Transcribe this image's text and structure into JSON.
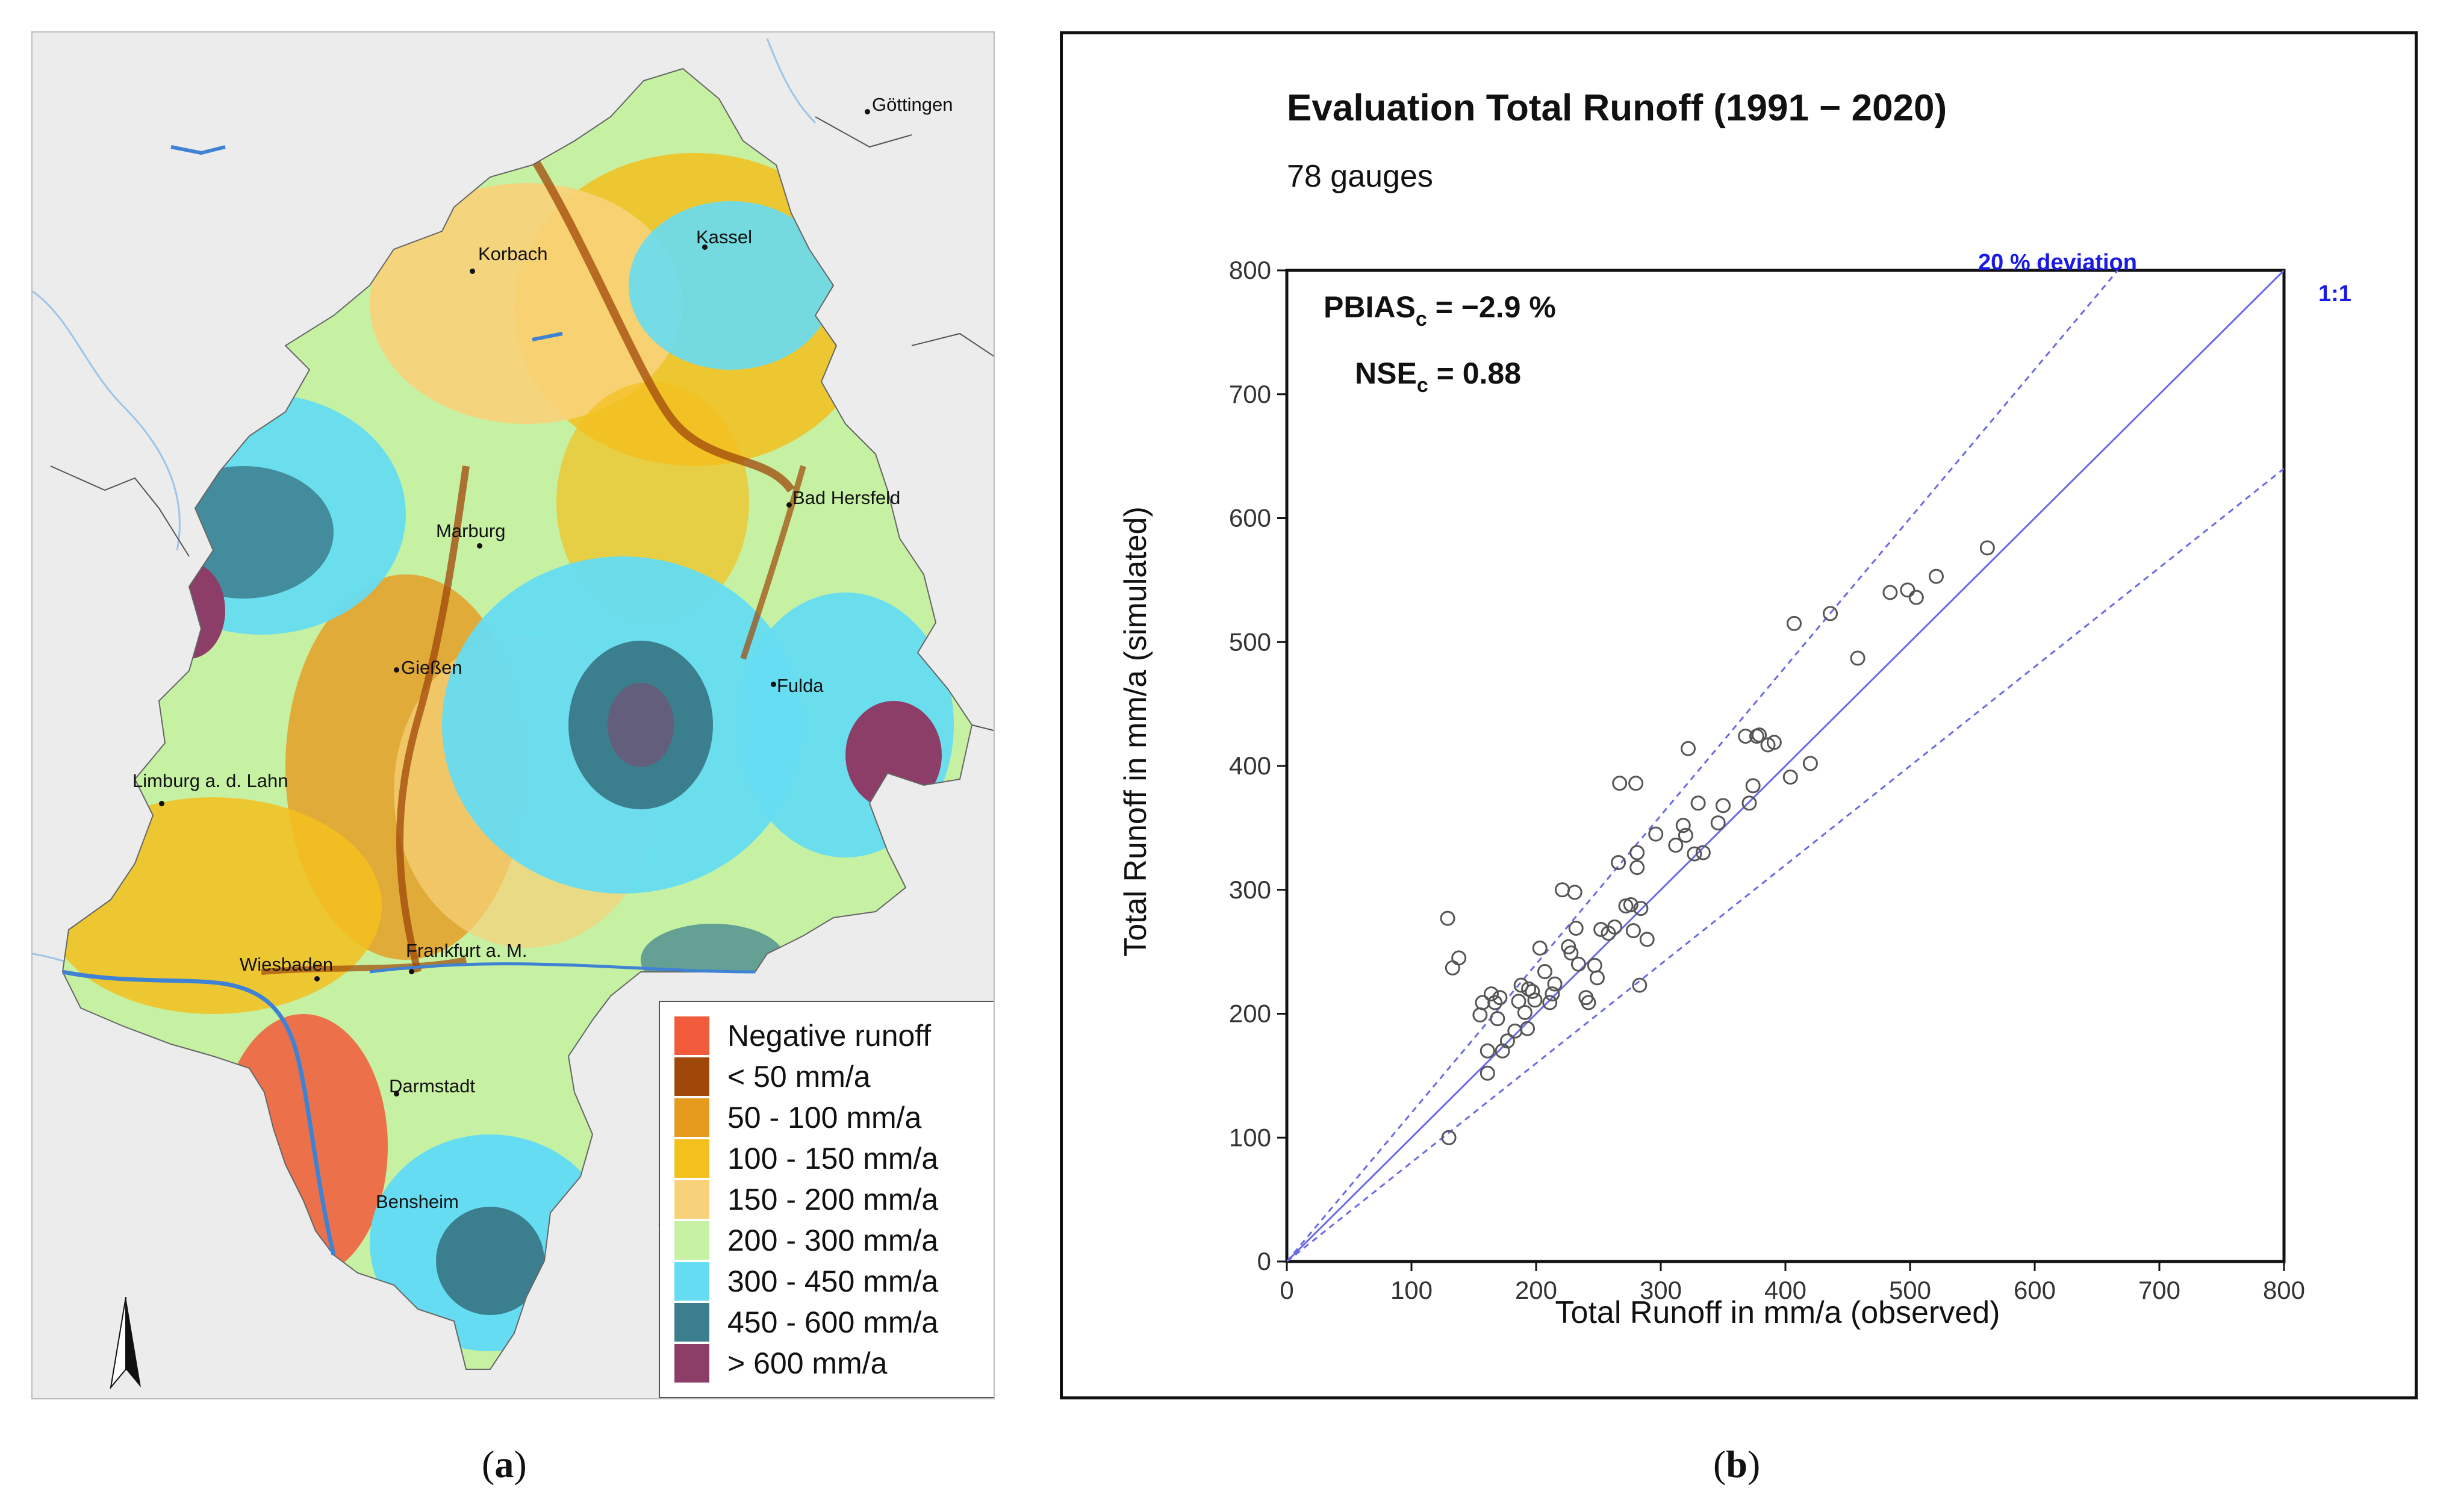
{
  "panel_a": {
    "caption_letter": "a",
    "cities": [
      {
        "name": "Göttingen"
      },
      {
        "name": "Korbach"
      },
      {
        "name": "Kassel"
      },
      {
        "name": "Marburg"
      },
      {
        "name": "Bad Hersfeld"
      },
      {
        "name": "Gießen"
      },
      {
        "name": "Fulda"
      },
      {
        "name": "Limburg a. d. Lahn"
      },
      {
        "name": "Wiesbaden"
      },
      {
        "name": "Frankfurt a. M."
      },
      {
        "name": "Darmstadt"
      },
      {
        "name": "Bensheim"
      }
    ],
    "legend": [
      {
        "label": "Negative runoff",
        "color": "#f25a3c"
      },
      {
        "label": "< 50 mm/a",
        "color": "#a0470a"
      },
      {
        "label": "50 - 100 mm/a",
        "color": "#e69a1e"
      },
      {
        "label": "100 - 150 mm/a",
        "color": "#f3c01e"
      },
      {
        "label": "150 - 200 mm/a",
        "color": "#f8d27a"
      },
      {
        "label": "200 - 300 mm/a",
        "color": "#c6f0a2"
      },
      {
        "label": "300 - 450 mm/a",
        "color": "#66dcf2"
      },
      {
        "label": "450 - 600 mm/a",
        "color": "#3b7e8e"
      },
      {
        "label": "> 600 mm/a",
        "color": "#8c3e68"
      }
    ]
  },
  "panel_b": {
    "caption_letter": "b"
  },
  "chart_data": {
    "type": "scatter",
    "title": "Evaluation Total Runoff (1991 − 2020)",
    "subtitle": "78 gauges",
    "xlabel": "Total Runoff in mm/a (observed)",
    "ylabel": "Total Runoff in mm/a (simulated)",
    "xlim": [
      0,
      800
    ],
    "ylim": [
      0,
      800
    ],
    "x_ticks": [
      0,
      100,
      200,
      300,
      400,
      500,
      600,
      700,
      800
    ],
    "y_ticks": [
      0,
      100,
      200,
      300,
      400,
      500,
      600,
      700,
      800
    ],
    "grid": false,
    "annotations": {
      "deviation_label": "20 % deviation",
      "identity_label": "1:1",
      "pbias_label": "PBIAS",
      "pbias_sub": "c",
      "pbias_value": " = −2.9 %",
      "nse_label": "NSE",
      "nse_sub": "c",
      "nse_value": " = 0.88"
    },
    "reference_lines": [
      {
        "name": "1:1",
        "slope": 1.0
      },
      {
        "name": "+20 %",
        "slope": 1.2
      },
      {
        "name": "−20 %",
        "slope": 0.8
      }
    ],
    "colors": {
      "reference": "#6a6ae6",
      "points": "#555555",
      "annotation": "#1a1ae6"
    },
    "points": [
      [
        129,
        277
      ],
      [
        133,
        237
      ],
      [
        138,
        245
      ],
      [
        155,
        199
      ],
      [
        157,
        209
      ],
      [
        161,
        152
      ],
      [
        161,
        170
      ],
      [
        164,
        216
      ],
      [
        167,
        209
      ],
      [
        169,
        196
      ],
      [
        171,
        213
      ],
      [
        173,
        170
      ],
      [
        177,
        178
      ],
      [
        183,
        186
      ],
      [
        186,
        210
      ],
      [
        188,
        223
      ],
      [
        191,
        201
      ],
      [
        193,
        188
      ],
      [
        194,
        220
      ],
      [
        197,
        218
      ],
      [
        199,
        211
      ],
      [
        203,
        253
      ],
      [
        207,
        234
      ],
      [
        211,
        209
      ],
      [
        213,
        216
      ],
      [
        215,
        224
      ],
      [
        221,
        300
      ],
      [
        226,
        254
      ],
      [
        228,
        249
      ],
      [
        231,
        298
      ],
      [
        232,
        269
      ],
      [
        234,
        240
      ],
      [
        240,
        213
      ],
      [
        242,
        209
      ],
      [
        247,
        239
      ],
      [
        249,
        229
      ],
      [
        252,
        268
      ],
      [
        258,
        265
      ],
      [
        263,
        270
      ],
      [
        266,
        322
      ],
      [
        267,
        386
      ],
      [
        272,
        287
      ],
      [
        276,
        288
      ],
      [
        278,
        267
      ],
      [
        280,
        386
      ],
      [
        281,
        330
      ],
      [
        281,
        318
      ],
      [
        283,
        223
      ],
      [
        284,
        285
      ],
      [
        289,
        260
      ],
      [
        296,
        345
      ],
      [
        312,
        336
      ],
      [
        318,
        352
      ],
      [
        320,
        344
      ],
      [
        322,
        414
      ],
      [
        327,
        329
      ],
      [
        330,
        370
      ],
      [
        334,
        330
      ],
      [
        346,
        354
      ],
      [
        350,
        368
      ],
      [
        368,
        424
      ],
      [
        371,
        370
      ],
      [
        374,
        384
      ],
      [
        377,
        424
      ],
      [
        379,
        425
      ],
      [
        386,
        417
      ],
      [
        391,
        419
      ],
      [
        404,
        391
      ],
      [
        407,
        515
      ],
      [
        420,
        402
      ],
      [
        436,
        523
      ],
      [
        458,
        487
      ],
      [
        484,
        540
      ],
      [
        498,
        542
      ],
      [
        505,
        536
      ],
      [
        521,
        553
      ],
      [
        562,
        576
      ],
      [
        130,
        100
      ]
    ]
  }
}
